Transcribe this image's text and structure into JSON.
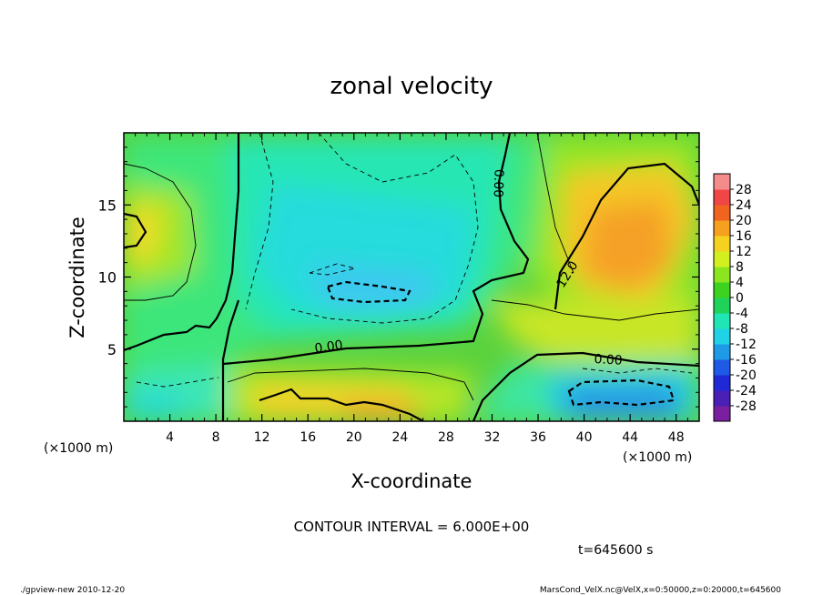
{
  "chart_data": {
    "type": "heatmap",
    "title": "zonal velocity",
    "xlabel": "X-coordinate",
    "ylabel": "Z-coordinate",
    "x_unit": "(×1000 m)",
    "y_unit": "(×1000 m)",
    "xlim": [
      0,
      50
    ],
    "ylim": [
      0,
      20
    ],
    "x_ticks": [
      4,
      8,
      12,
      16,
      20,
      24,
      28,
      32,
      36,
      40,
      44,
      48
    ],
    "y_ticks": [
      5,
      10,
      15
    ],
    "colorbar": {
      "labels": [
        28,
        24,
        20,
        16,
        12,
        8,
        4,
        0,
        -4,
        -8,
        -12,
        -16,
        -20,
        -24,
        -28
      ],
      "colors": [
        "#7a1fa0",
        "#4a1fb5",
        "#1f2ad6",
        "#1f5ae6",
        "#1f9ae6",
        "#1fd2e6",
        "#1fe6b4",
        "#1fd25a",
        "#3cd21f",
        "#8ce61f",
        "#d2f01f",
        "#f5d21f",
        "#f5a01f",
        "#f0641f",
        "#f04646",
        "#f58c8c"
      ]
    },
    "contour_labels": [
      {
        "text": "0.00",
        "x": 17.8,
        "z": 5.2,
        "angle": -8
      },
      {
        "text": "0.00",
        "x": 42.1,
        "z": 4.3,
        "angle": 3
      },
      {
        "text": "0.00",
        "x": 32.6,
        "z": 16.5,
        "angle": 92
      },
      {
        "text": "12.0",
        "x": 38.5,
        "z": 10.2,
        "angle": -58
      }
    ],
    "contour_interval": "CONTOUR INTERVAL = 6.000E+00",
    "time_label": "t=645600 s"
  },
  "footer": {
    "left": "./gpview-new  2010-12-20",
    "right": "MarsCond_VelX.nc@VelX,x=0:50000,z=0:20000,t=645600"
  }
}
